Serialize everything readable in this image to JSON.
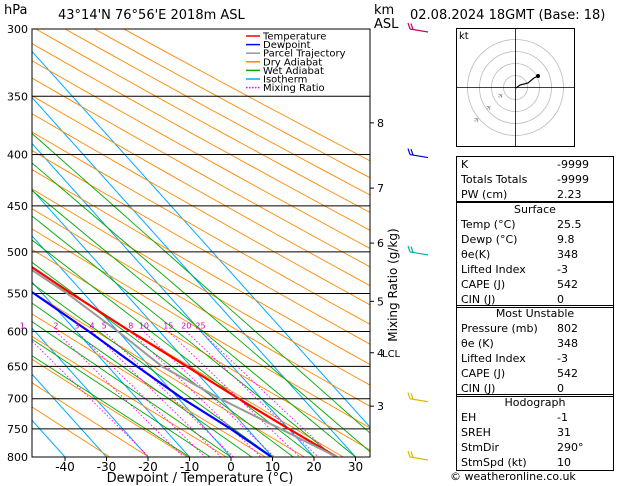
{
  "header": {
    "hpa_label": "hPa",
    "location": "43°14'N  76°56'E  2018m  ASL",
    "km_label": "km",
    "asl_label": "ASL",
    "datetime": "02.08.2024  18GMT  (Base: 18)"
  },
  "chart_data": {
    "type": "line",
    "title": "Skew-T log-P diagram",
    "xlabel": "Dewpoint / Temperature (°C)",
    "ylabel": "hPa",
    "right_label": "Mixing Ratio (g/kg)",
    "pressure_levels": [
      300,
      350,
      400,
      450,
      500,
      550,
      600,
      650,
      700,
      750,
      800
    ],
    "temperature_ticks": [
      -40,
      -30,
      -20,
      -10,
      0,
      10,
      20,
      30
    ],
    "mixing_ratio_labels": [
      "1",
      "2",
      "3",
      "4",
      "5",
      "8",
      "10",
      "15",
      "20",
      "25"
    ],
    "height_km_labels": [
      {
        "p": 372,
        "label": "8"
      },
      {
        "p": 432,
        "label": "7"
      },
      {
        "p": 490,
        "label": "6"
      },
      {
        "p": 560,
        "label": "5"
      },
      {
        "p": 630,
        "label": "4"
      },
      {
        "p": 712,
        "label": "3"
      }
    ],
    "lcl_label": "LCL",
    "lcl_pressure": 630,
    "legend": [
      {
        "name": "Temperature",
        "color": "#ff0000"
      },
      {
        "name": "Dewpoint",
        "color": "#0000ff"
      },
      {
        "name": "Parcel Trajectory",
        "color": "#999999"
      },
      {
        "name": "Dry Adiabat",
        "color": "#ff8800"
      },
      {
        "name": "Wet Adiabat",
        "color": "#00aa00"
      },
      {
        "name": "Isotherm",
        "color": "#00aaff"
      },
      {
        "name": "Mixing Ratio",
        "color": "#ff00ff"
      }
    ],
    "series": [
      {
        "name": "Temperature",
        "color": "#ff0000",
        "points": [
          [
            800,
            25.5
          ],
          [
            750,
            20.0
          ],
          [
            700,
            14.5
          ],
          [
            650,
            9.0
          ],
          [
            600,
            3.0
          ],
          [
            550,
            -3.0
          ],
          [
            500,
            -9.0
          ],
          [
            450,
            -16.0
          ],
          [
            400,
            -23.0
          ],
          [
            350,
            -31.0
          ]
        ]
      },
      {
        "name": "Dewpoint",
        "color": "#0000ff",
        "points": [
          [
            800,
            9.8
          ],
          [
            750,
            6.0
          ],
          [
            700,
            1.0
          ],
          [
            650,
            -3.0
          ],
          [
            600,
            -7.0
          ],
          [
            550,
            -12.0
          ],
          [
            500,
            -18.0
          ],
          [
            450,
            -23.0
          ],
          [
            400,
            -29.0
          ],
          [
            350,
            -60.0
          ],
          [
            300,
            -78.0
          ]
        ]
      },
      {
        "name": "Parcel Trajectory",
        "color": "#999999",
        "points": [
          [
            800,
            25.5
          ],
          [
            750,
            18.0
          ],
          [
            700,
            10.0
          ],
          [
            650,
            3.0
          ],
          [
            600,
            0.0
          ],
          [
            550,
            -4.0
          ],
          [
            500,
            -10.0
          ],
          [
            450,
            -16.0
          ],
          [
            400,
            -23.0
          ],
          [
            350,
            -31.0
          ]
        ]
      }
    ],
    "wind_barbs": [
      {
        "p": 300,
        "color": "#cc0066"
      },
      {
        "p": 400,
        "color": "#0000cc"
      },
      {
        "p": 500,
        "color": "#00aaaa"
      },
      {
        "p": 700,
        "color": "#ddbb00"
      },
      {
        "p": 800,
        "color": "#ddbb00"
      }
    ]
  },
  "hodograph": {
    "label": "kt",
    "rings": [
      10,
      20,
      30,
      40
    ]
  },
  "indices": [
    {
      "label": "K",
      "value": "-9999"
    },
    {
      "label": "Totals Totals",
      "value": "-9999"
    },
    {
      "label": "PW (cm)",
      "value": "2.23"
    }
  ],
  "surface": {
    "title": "Surface",
    "rows": [
      {
        "label": "Temp (°C)",
        "value": "25.5"
      },
      {
        "label": "Dewp (°C)",
        "value": "9.8"
      },
      {
        "label": "θe(K)",
        "value": "348"
      },
      {
        "label": "Lifted Index",
        "value": "-3"
      },
      {
        "label": "CAPE (J)",
        "value": "542"
      },
      {
        "label": "CIN (J)",
        "value": "0"
      }
    ]
  },
  "most_unstable": {
    "title": "Most Unstable",
    "rows": [
      {
        "label": "Pressure (mb)",
        "value": "802"
      },
      {
        "label": "θe (K)",
        "value": "348"
      },
      {
        "label": "Lifted Index",
        "value": "-3"
      },
      {
        "label": "CAPE (J)",
        "value": "542"
      },
      {
        "label": "CIN (J)",
        "value": "0"
      }
    ]
  },
  "hodograph_table": {
    "title": "Hodograph",
    "rows": [
      {
        "label": "EH",
        "value": "-1"
      },
      {
        "label": "SREH",
        "value": "31"
      },
      {
        "label": "StmDir",
        "value": "290°"
      },
      {
        "label": "StmSpd (kt)",
        "value": "10"
      }
    ]
  },
  "footer": {
    "copyright": "© weatheronline.co.uk"
  }
}
